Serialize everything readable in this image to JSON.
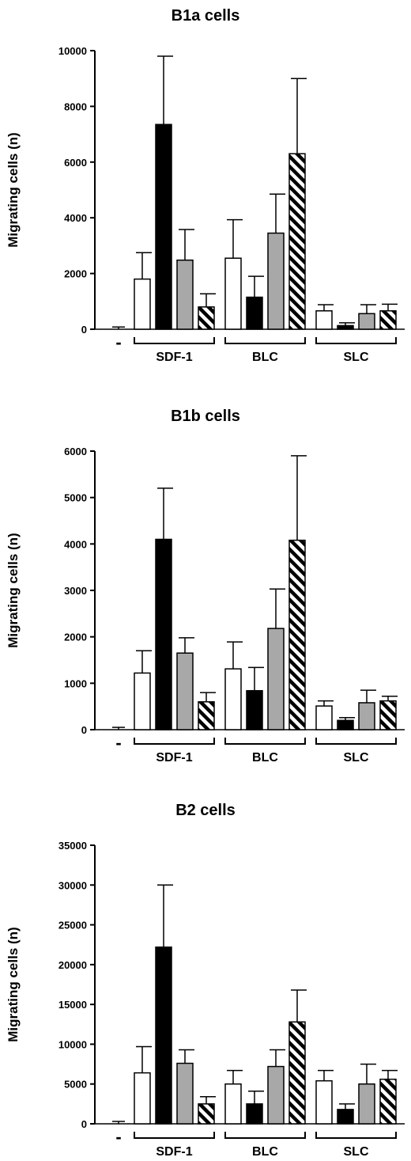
{
  "chart_data": [
    {
      "type": "bar",
      "title": "B1a cells",
      "ylabel": "Migrating cells (n)",
      "ylim": [
        0,
        10000
      ],
      "yticks": [
        "0",
        "2000",
        "4000",
        "6000",
        "8000",
        "10000"
      ],
      "control_label": "-",
      "control": {
        "value": 0,
        "error": 80
      },
      "groups": [
        {
          "label": "SDF-1",
          "values": [
            1800,
            7350,
            2480,
            800
          ],
          "errors": [
            950,
            2450,
            1100,
            470
          ]
        },
        {
          "label": "BLC",
          "values": [
            2550,
            1150,
            3450,
            6300
          ],
          "errors": [
            1380,
            750,
            1400,
            2700
          ]
        },
        {
          "label": "SLC",
          "values": [
            660,
            130,
            560,
            660
          ],
          "errors": [
            220,
            100,
            320,
            240
          ]
        }
      ]
    },
    {
      "type": "bar",
      "title": "B1b cells",
      "ylabel": "Migrating cells (n)",
      "ylim": [
        0,
        6000
      ],
      "yticks": [
        "0",
        "1000",
        "2000",
        "3000",
        "4000",
        "5000",
        "6000"
      ],
      "control_label": "-",
      "control": {
        "value": 0,
        "error": 50
      },
      "groups": [
        {
          "label": "SDF-1",
          "values": [
            1220,
            4100,
            1650,
            600
          ],
          "errors": [
            480,
            1100,
            330,
            200
          ]
        },
        {
          "label": "BLC",
          "values": [
            1310,
            840,
            2180,
            4080
          ],
          "errors": [
            580,
            500,
            850,
            1820
          ]
        },
        {
          "label": "SLC",
          "values": [
            510,
            200,
            580,
            620
          ],
          "errors": [
            110,
            60,
            270,
            100
          ]
        }
      ]
    },
    {
      "type": "bar",
      "title": "B2 cells",
      "ylabel": "Migrating cells (n)",
      "ylim": [
        0,
        35000
      ],
      "yticks": [
        "0",
        "5000",
        "10000",
        "15000",
        "20000",
        "25000",
        "30000",
        "35000"
      ],
      "control_label": "-",
      "control": {
        "value": 0,
        "error": 300
      },
      "groups": [
        {
          "label": "SDF-1",
          "values": [
            6400,
            22200,
            7600,
            2500
          ],
          "errors": [
            3300,
            7800,
            1700,
            900
          ]
        },
        {
          "label": "BLC",
          "values": [
            5000,
            2500,
            7200,
            12800
          ],
          "errors": [
            1700,
            1600,
            2100,
            4000
          ]
        },
        {
          "label": "SLC",
          "values": [
            5400,
            1800,
            5000,
            5600
          ],
          "errors": [
            1300,
            700,
            2500,
            1100
          ]
        }
      ]
    }
  ]
}
